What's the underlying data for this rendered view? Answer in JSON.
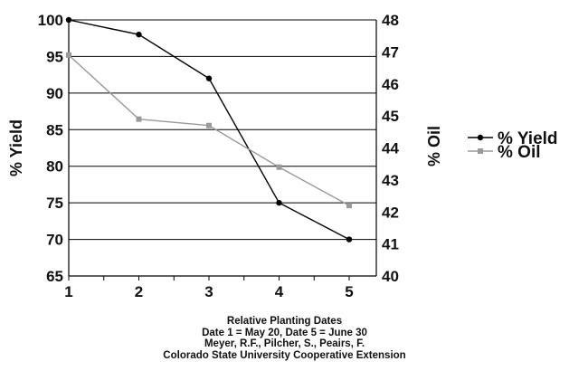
{
  "chart_data": {
    "type": "line",
    "categories": [
      "1",
      "2",
      "3",
      "4",
      "5"
    ],
    "series": [
      {
        "name": "% Yield",
        "axis": "left",
        "values": [
          100,
          98,
          92,
          75,
          70
        ],
        "color": "#000000",
        "marker": "circle"
      },
      {
        "name": "% Oil",
        "axis": "right",
        "values": [
          46.9,
          44.9,
          44.7,
          43.4,
          42.2
        ],
        "color": "#9a9a9a",
        "marker": "square"
      }
    ],
    "left_axis": {
      "label": "% Yield",
      "min": 65,
      "max": 100,
      "ticks": [
        "65",
        "70",
        "75",
        "80",
        "85",
        "90",
        "95",
        "100"
      ]
    },
    "right_axis": {
      "label": "% Oil",
      "min": 40,
      "max": 48,
      "ticks": [
        "40",
        "41",
        "42",
        "43",
        "44",
        "45",
        "46",
        "47",
        "48"
      ]
    },
    "gridlines": "horizontal",
    "legend_position": "right"
  },
  "caption": [
    "Relative Planting Dates",
    "Date 1 = May 20, Date 5 = June 30",
    "Meyer, R.F., Pilcher, S., Peairs, F.",
    "Colorado State University Cooperative Extension"
  ]
}
